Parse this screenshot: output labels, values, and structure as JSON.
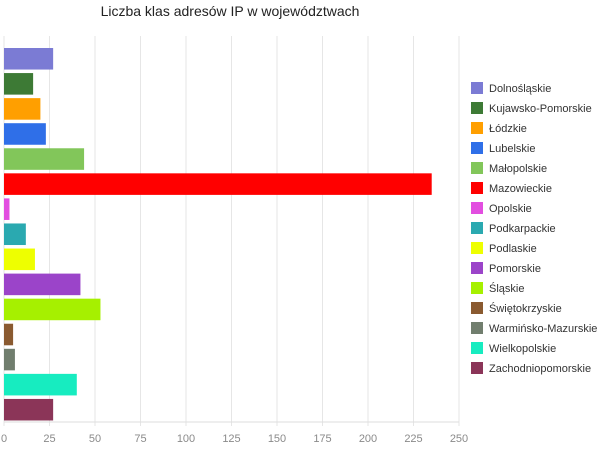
{
  "chart_data": {
    "type": "bar",
    "orientation": "horizontal",
    "title": "Liczba klas adresów IP w województwach",
    "xlabel": "",
    "ylabel": "",
    "xlim": [
      0,
      250
    ],
    "x_ticks": [
      0,
      25,
      50,
      75,
      100,
      125,
      150,
      175,
      200,
      225,
      250
    ],
    "grid": true,
    "legend_position": "right",
    "categories": [
      "Dolnośląskie",
      "Kujawsko-Pomorskie",
      "Łódzkie",
      "Lubelskie",
      "Małopolskie",
      "Mazowieckie",
      "Opolskie",
      "Podkarpackie",
      "Podlaskie",
      "Pomorskie",
      "Śląskie",
      "Świętokrzyskie",
      "Warmińsko-Mazurskie",
      "Wielkopolskie",
      "Zachodniopomorskie"
    ],
    "values": [
      27,
      16,
      20,
      23,
      44,
      235,
      3,
      12,
      17,
      42,
      53,
      5,
      6,
      40,
      27
    ],
    "colors": [
      "#7b7bd4",
      "#3d7a35",
      "#ff9f00",
      "#2f6fe8",
      "#82c65a",
      "#ff0000",
      "#e24ee0",
      "#2aa9b0",
      "#eeff00",
      "#9b44c9",
      "#a6f000",
      "#8a5a30",
      "#717e6e",
      "#17ecc0",
      "#8b3558"
    ]
  }
}
